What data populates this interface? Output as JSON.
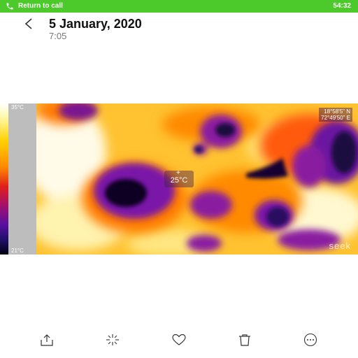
{
  "callbar": {
    "label": "Return to call",
    "time": "54:32",
    "icon": "phone-icon",
    "color": "#4cc92b"
  },
  "header": {
    "date": "5 January, 2020",
    "time": "7:05",
    "back_icon": "back-chevron-icon"
  },
  "thermal": {
    "scale_max": "35°C",
    "scale_min": "21°C",
    "spot_temp": "25°C",
    "coord_lat": "18°58'5\" N",
    "coord_lon": "72°49'50\" E",
    "watermark": "seek",
    "palette": [
      "#ffffff",
      "#ffd000",
      "#ff8a00",
      "#e0201a",
      "#5a10a0",
      "#000010"
    ]
  },
  "toolbar": {
    "items": [
      {
        "icon": "share-icon"
      },
      {
        "icon": "edit-sparkle-icon"
      },
      {
        "icon": "favorite-heart-icon"
      },
      {
        "icon": "delete-trash-icon"
      },
      {
        "icon": "more-dots-icon"
      }
    ]
  }
}
